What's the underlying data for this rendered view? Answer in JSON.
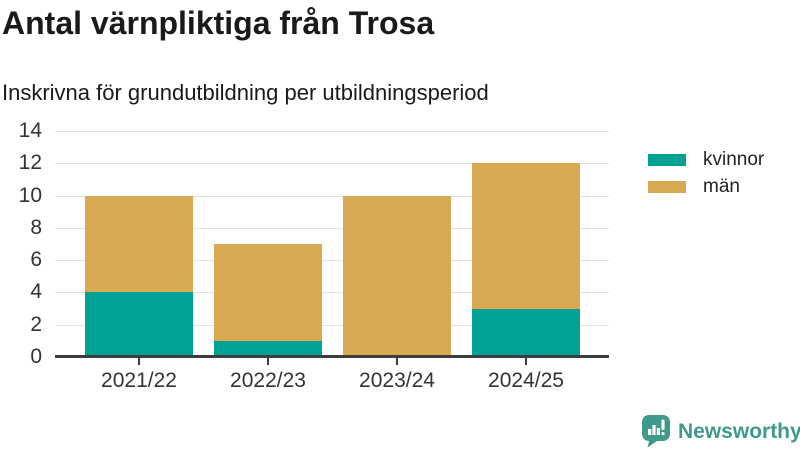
{
  "header": {
    "title": "Antal värnpliktiga från Trosa",
    "subtitle": "Inskrivna för grundutbildning per utbildningsperiod"
  },
  "chart_data": {
    "type": "bar",
    "stacked": true,
    "title": "Antal värnpliktiga från Trosa",
    "subtitle": "Inskrivna för grundutbildning per utbildningsperiod",
    "categories": [
      "2021/22",
      "2022/23",
      "2023/24",
      "2024/25"
    ],
    "series": [
      {
        "name": "kvinnor",
        "color": "#00a296",
        "values": [
          4,
          1,
          0,
          3
        ]
      },
      {
        "name": "män",
        "color": "#d8ab53",
        "values": [
          6,
          6,
          10,
          9
        ]
      }
    ],
    "totals": [
      10,
      7,
      10,
      12
    ],
    "xlabel": "",
    "ylabel": "",
    "ylim": [
      0,
      14
    ],
    "yticks": [
      0,
      2,
      4,
      6,
      8,
      10,
      12,
      14
    ],
    "grid": true,
    "legend_position": "right"
  },
  "colors": {
    "kvinnor": "#00a296",
    "man": "#d8ab53",
    "gridline": "#e2e2e2",
    "axis": "#3d3d3d",
    "tick_text": "#333333",
    "text": "#1a1a1a",
    "brand": "#3f9a8b"
  },
  "watermark": {
    "brand": "Newsworthy",
    "icon": "newsworthy-logo-icon"
  }
}
